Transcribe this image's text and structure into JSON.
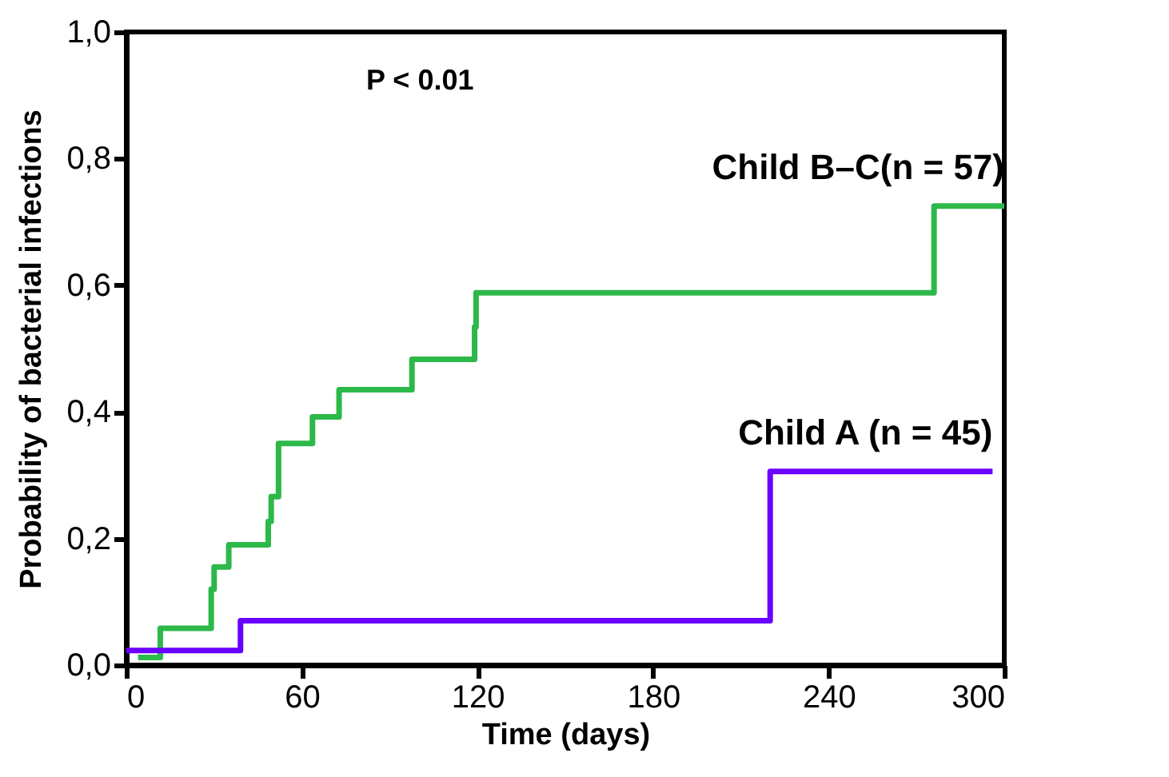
{
  "chart_data": {
    "type": "step",
    "xlabel": "Time (days)",
    "ylabel": "Probability of bacterial infections",
    "xlim": [
      0,
      300
    ],
    "xticks": [
      0,
      60,
      120,
      180,
      240,
      300
    ],
    "ylim": [
      0,
      1
    ],
    "yticks": [
      {
        "value": 0,
        "label": "0,0"
      },
      {
        "value": 0.2,
        "label": "0,2"
      },
      {
        "value": 0.4,
        "label": "0,4"
      },
      {
        "value": 0.6,
        "label": "0,6"
      },
      {
        "value": 0.8,
        "label": "0,8"
      },
      {
        "value": 1,
        "label": "1,0"
      }
    ],
    "grid": false,
    "line_style": "solid",
    "annotations": [
      "P < 0.01"
    ],
    "series": [
      {
        "name": "Child B–C(n = 57)",
        "color": "#2db84a",
        "x": [
          4,
          11.6,
          29,
          30,
          35,
          48.5,
          49.5,
          52,
          63.6,
          72.7,
          97.6,
          119,
          119.5,
          276,
          300
        ],
        "values": [
          0.012,
          0.058,
          0.12,
          0.155,
          0.19,
          0.227,
          0.266,
          0.35,
          0.392,
          0.435,
          0.483,
          0.534,
          0.588,
          0.725,
          0.725
        ]
      },
      {
        "name": "Child A (n = 45)",
        "color": "#6a00ff",
        "x": [
          0,
          39,
          220,
          296
        ],
        "values": [
          0.023,
          0.07,
          0.306,
          0.306
        ]
      }
    ]
  }
}
